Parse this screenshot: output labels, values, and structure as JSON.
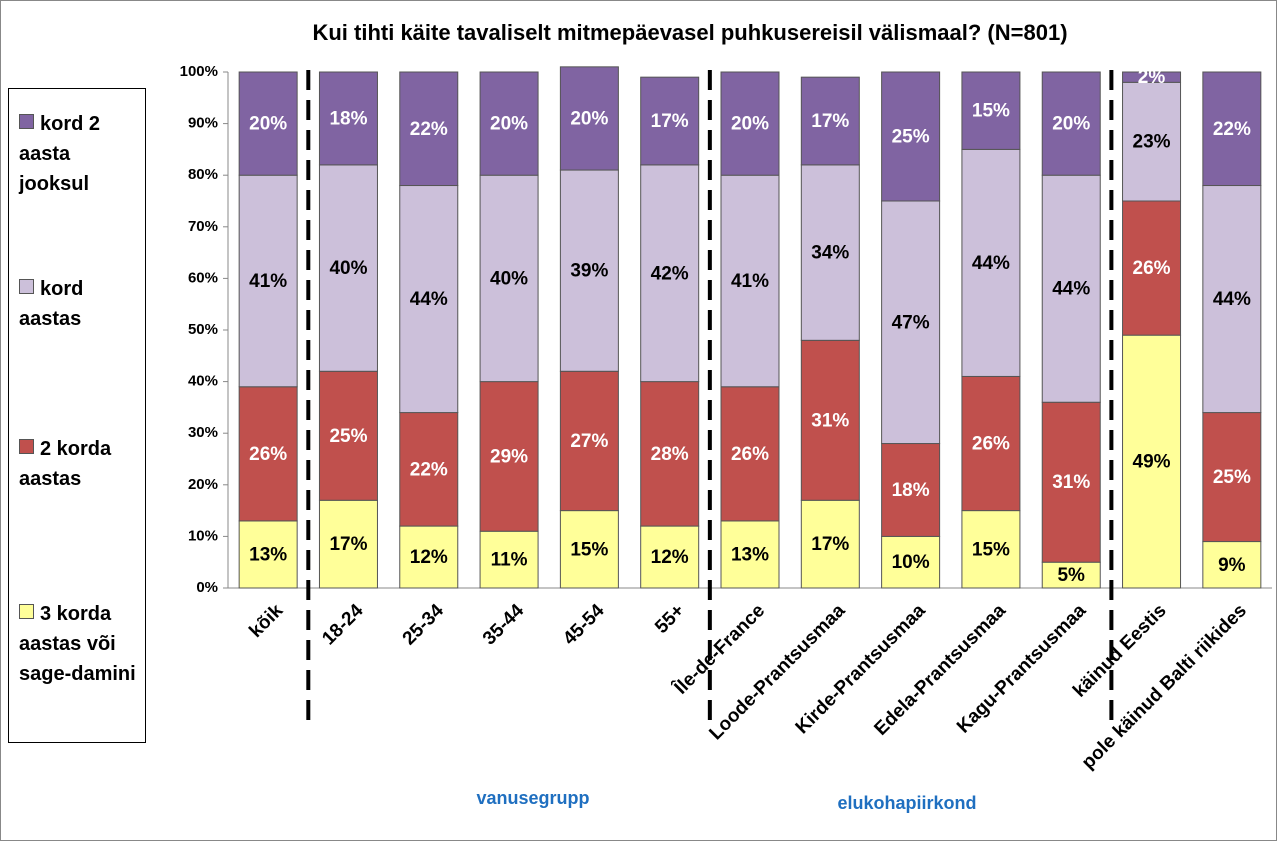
{
  "chart_data": {
    "type": "stacked_bar",
    "title": "Kui tihti käite tavaliselt mitmepäevasel puhkusereisil välismaal? (N=801)",
    "annotations": [
      "vanusegrupp",
      "elukohapiirkond"
    ],
    "categories": [
      "kõik",
      "18-24",
      "25-34",
      "35-44",
      "45-54",
      "55+",
      "Île-de-France",
      "Loode-Prantsusmaa",
      "Kirde-Prantsusmaa",
      "Edela-Prantsusmaa",
      "Kagu-Prantsusmaa",
      "käinud Eestis",
      "pole käinud Balti riikides"
    ],
    "series": [
      {
        "name": "3 korda aastas või sage-damini",
        "color": "#ffff99",
        "label_color": "#000000",
        "values": [
          13,
          17,
          12,
          11,
          15,
          12,
          13,
          17,
          10,
          15,
          5,
          49,
          9
        ],
        "value_labels": [
          "13%",
          "17%",
          "12%",
          "11%",
          "15%",
          "12%",
          "13%",
          "17%",
          "10%",
          "15%",
          "5%",
          "49%",
          "9%"
        ]
      },
      {
        "name": "2 korda aastas",
        "color": "#c0504d",
        "label_color": "#ffffff",
        "values": [
          26,
          25,
          22,
          29,
          27,
          28,
          26,
          31,
          18,
          26,
          31,
          26,
          25
        ],
        "value_labels": [
          "26%",
          "25%",
          "22%",
          "29%",
          "27%",
          "28%",
          "26%",
          "31%",
          "18%",
          "26%",
          "31%",
          "26%",
          "25%"
        ]
      },
      {
        "name": "kord aastas",
        "color": "#ccc0da",
        "label_color": "#000000",
        "values": [
          41,
          40,
          44,
          40,
          39,
          42,
          41,
          34,
          47,
          44,
          44,
          23,
          44
        ],
        "value_labels": [
          "41%",
          "40%",
          "44%",
          "40%",
          "39%",
          "42%",
          "41%",
          "34%",
          "47%",
          "44%",
          "44%",
          "23%",
          "44%"
        ]
      },
      {
        "name": "kord 2 aasta jooksul",
        "color": "#8064a2",
        "label_color": "#ffffff",
        "values": [
          20,
          18,
          22,
          20,
          20,
          17,
          20,
          17,
          25,
          15,
          20,
          2,
          22
        ],
        "value_labels": [
          "20%",
          "18%",
          "22%",
          "20%",
          "20%",
          "17%",
          "20%",
          "17%",
          "25%",
          "15%",
          "20%",
          "2%",
          "22%"
        ]
      }
    ],
    "ylim": [
      0,
      100
    ],
    "yticks": [
      {
        "value": 0,
        "label": "0%"
      },
      {
        "value": 10,
        "label": "10%"
      },
      {
        "value": 20,
        "label": "20%"
      },
      {
        "value": 30,
        "label": "30%"
      },
      {
        "value": 40,
        "label": "40%"
      },
      {
        "value": 50,
        "label": "50%"
      },
      {
        "value": 60,
        "label": "60%"
      },
      {
        "value": 70,
        "label": "70%"
      },
      {
        "value": 80,
        "label": "80%"
      },
      {
        "value": 90,
        "label": "90%"
      },
      {
        "value": 100,
        "label": "100%"
      }
    ],
    "legend": "left"
  }
}
